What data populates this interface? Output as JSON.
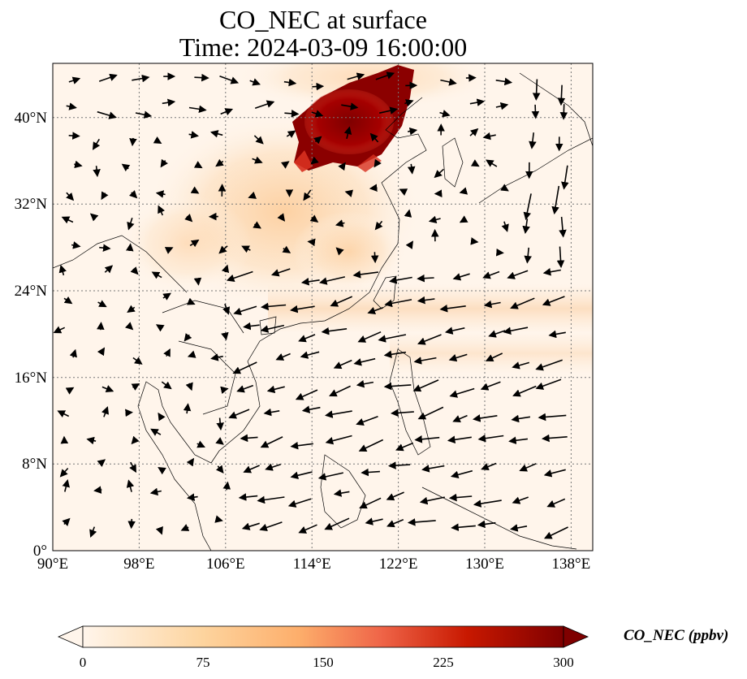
{
  "title": {
    "line1": "CO_NEC at surface",
    "line2": "Time: 2024-03-09 16:00:00"
  },
  "map": {
    "projection": "PlateCarree",
    "lon_range": [
      90,
      140
    ],
    "lat_range": [
      0,
      45
    ],
    "gridlines": "dotted",
    "lon_ticks": [
      {
        "value": 90,
        "label": "90°E"
      },
      {
        "value": 98,
        "label": "98°E"
      },
      {
        "value": 106,
        "label": "106°E"
      },
      {
        "value": 114,
        "label": "114°E"
      },
      {
        "value": 122,
        "label": "122°E"
      },
      {
        "value": 130,
        "label": "130°E"
      },
      {
        "value": 138,
        "label": "138°E"
      }
    ],
    "lat_ticks": [
      {
        "value": 0,
        "label": "0°"
      },
      {
        "value": 8,
        "label": "8°N"
      },
      {
        "value": 16,
        "label": "16°N"
      },
      {
        "value": 24,
        "label": "24°N"
      },
      {
        "value": 32,
        "label": "32°N"
      },
      {
        "value": 40,
        "label": "40°N"
      }
    ],
    "field": {
      "variable": "CO_NEC",
      "hotspot": {
        "lon_range": [
          112,
          127
        ],
        "lat_range": [
          35,
          45
        ],
        "level": 300
      },
      "plume_north": {
        "center": [
          114,
          34
        ],
        "level": 60
      },
      "plume_east_band": {
        "lat": 22,
        "lon_range": [
          118,
          140
        ],
        "level": 30
      }
    },
    "wind": "quiver arrows"
  },
  "colorbar": {
    "label": "CO_NEC (ppbv)",
    "ticks": [
      "0",
      "75",
      "150",
      "225",
      "300"
    ],
    "extend": "both",
    "colors": [
      "#fff5eb",
      "#fdd49e",
      "#fdae6b",
      "#f16913",
      "#d7301f",
      "#990000",
      "#7f0000"
    ]
  }
}
